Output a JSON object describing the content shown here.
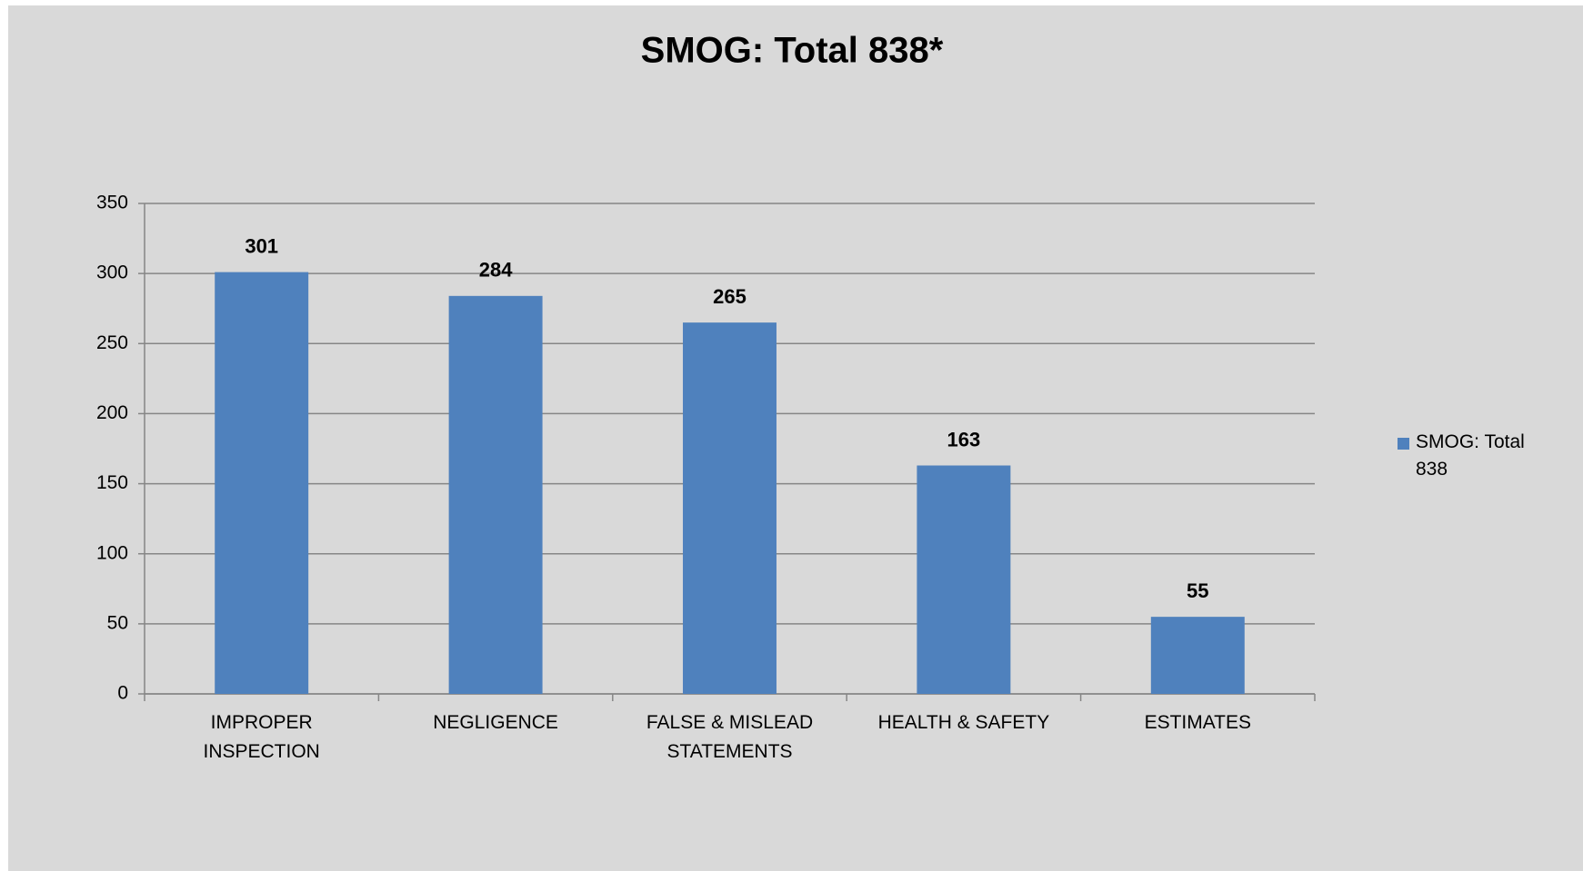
{
  "chart_data": {
    "type": "bar",
    "title": "SMOG: Total 838*",
    "categories": [
      "IMPROPER INSPECTION",
      "NEGLIGENCE",
      "FALSE & MISLEAD STATEMENTS",
      "HEALTH & SAFETY",
      "ESTIMATES"
    ],
    "series": [
      {
        "name": "SMOG: Total 838",
        "color": "#4f81bd",
        "values": [
          301,
          284,
          265,
          163,
          55
        ]
      }
    ],
    "ylim": [
      0,
      350
    ],
    "yticks": [
      0,
      50,
      100,
      150,
      200,
      250,
      300,
      350
    ],
    "grid": true,
    "legend": "right"
  }
}
